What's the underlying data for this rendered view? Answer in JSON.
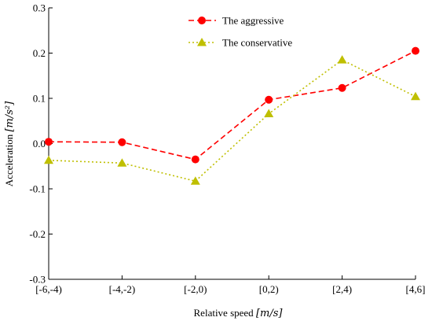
{
  "chart_data": {
    "type": "line",
    "categories": [
      "[-6,-4)",
      "[-4,-2)",
      "[-2,0)",
      "[0,2)",
      "[2,4)",
      "[4,6]"
    ],
    "series": [
      {
        "name": "The aggressive",
        "values": [
          0.004,
          0.003,
          -0.035,
          0.097,
          0.123,
          0.205
        ],
        "color": "#ff0000",
        "marker": "circle",
        "line_style": "dashed"
      },
      {
        "name": "The conservative",
        "values": [
          -0.037,
          -0.043,
          -0.083,
          0.066,
          0.185,
          0.104
        ],
        "color": "#bfbf00",
        "marker": "triangle",
        "line_style": "dotted"
      }
    ],
    "y_ticks": [
      "-0.3",
      "-0.2",
      "-0.1",
      "0.0",
      "0.1",
      "0.2",
      "0.3"
    ],
    "ylim": [
      -0.3,
      0.3
    ],
    "xlabel": "Relative speed",
    "xlabel_unit": "[m/s]",
    "ylabel": "Acceleration",
    "ylabel_unit": "[m/s²]",
    "legend_position": "top-right",
    "grid": false
  }
}
